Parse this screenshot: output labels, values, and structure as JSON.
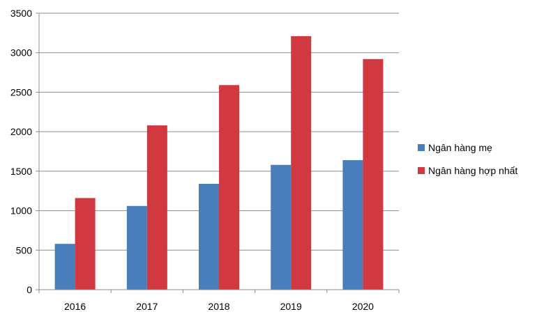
{
  "chart_data": {
    "type": "bar",
    "categories": [
      "2016",
      "2017",
      "2018",
      "2019",
      "2020"
    ],
    "series": [
      {
        "name": "Ngân hàng mẹ",
        "color": "#4a7ebb",
        "values": [
          580,
          1060,
          1340,
          1580,
          1640
        ]
      },
      {
        "name": "Ngân hàng hợp nhất",
        "color": "#d0393f",
        "values": [
          1160,
          2080,
          2590,
          3210,
          2920
        ]
      }
    ],
    "yticks": [
      "0",
      "500",
      "1000",
      "1500",
      "2000",
      "2500",
      "3000",
      "3500"
    ],
    "ylim": [
      0,
      3500
    ],
    "grid": true,
    "legend": "right"
  }
}
